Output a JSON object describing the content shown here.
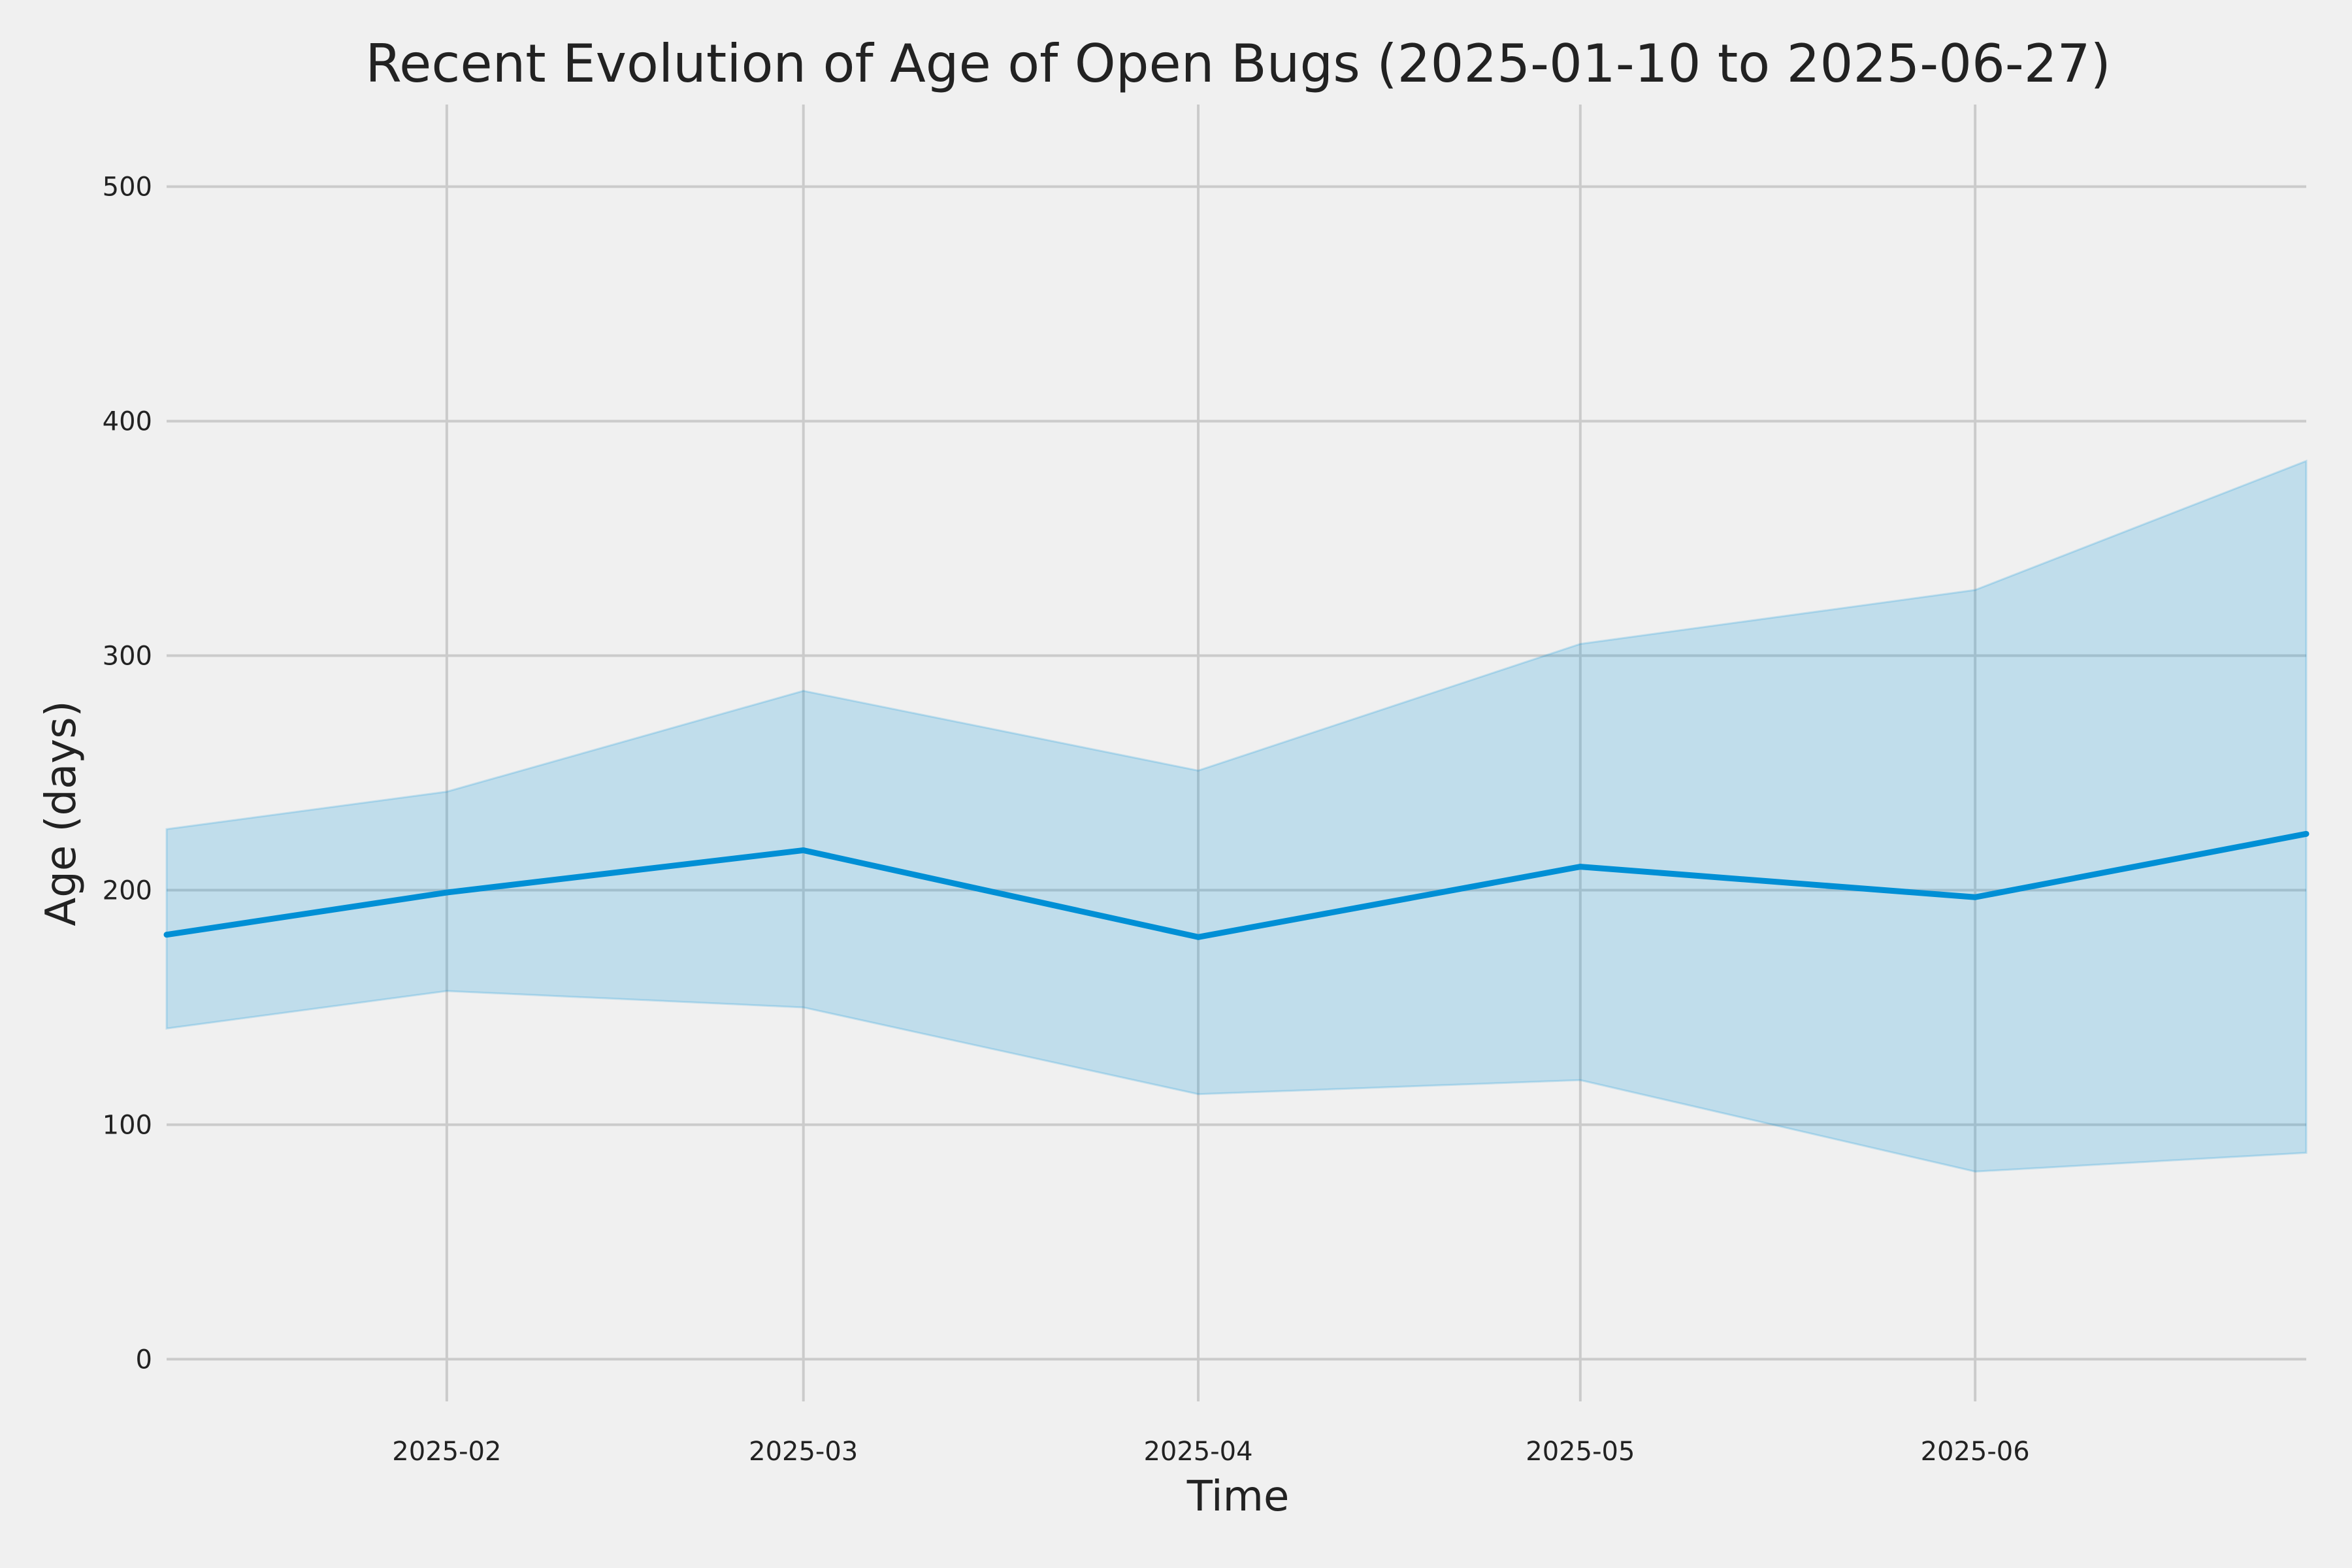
{
  "chart_data": {
    "type": "area",
    "title": "Recent Evolution of Age of Open Bugs (2025-01-10 to 2025-06-27)",
    "xlabel": "Time",
    "ylabel": "Age (days)",
    "xlim": [
      "2025-01-10",
      "2025-06-27"
    ],
    "ylim": [
      -18,
      535
    ],
    "grid": true,
    "legend": "none",
    "x_ticks": [
      "2025-02",
      "2025-03",
      "2025-04",
      "2025-05",
      "2025-06"
    ],
    "x_tick_dates": [
      "2025-02-01",
      "2025-03-01",
      "2025-04-01",
      "2025-05-01",
      "2025-06-01"
    ],
    "y_ticks": [
      0,
      100,
      200,
      300,
      400,
      500
    ],
    "x": [
      "2025-01-10",
      "2025-02-01",
      "2025-03-01",
      "2025-04-01",
      "2025-05-01",
      "2025-06-01",
      "2025-06-27"
    ],
    "series": [
      {
        "values": [
          181,
          199,
          217,
          180,
          210,
          197,
          224
        ],
        "color": "#008fd5"
      }
    ],
    "band": {
      "upper": [
        226,
        242,
        285,
        251,
        305,
        328,
        383
      ],
      "lower": [
        141,
        157,
        150,
        113,
        119,
        80,
        88
      ],
      "color": "#008fd5",
      "opacity": 0.2
    }
  }
}
